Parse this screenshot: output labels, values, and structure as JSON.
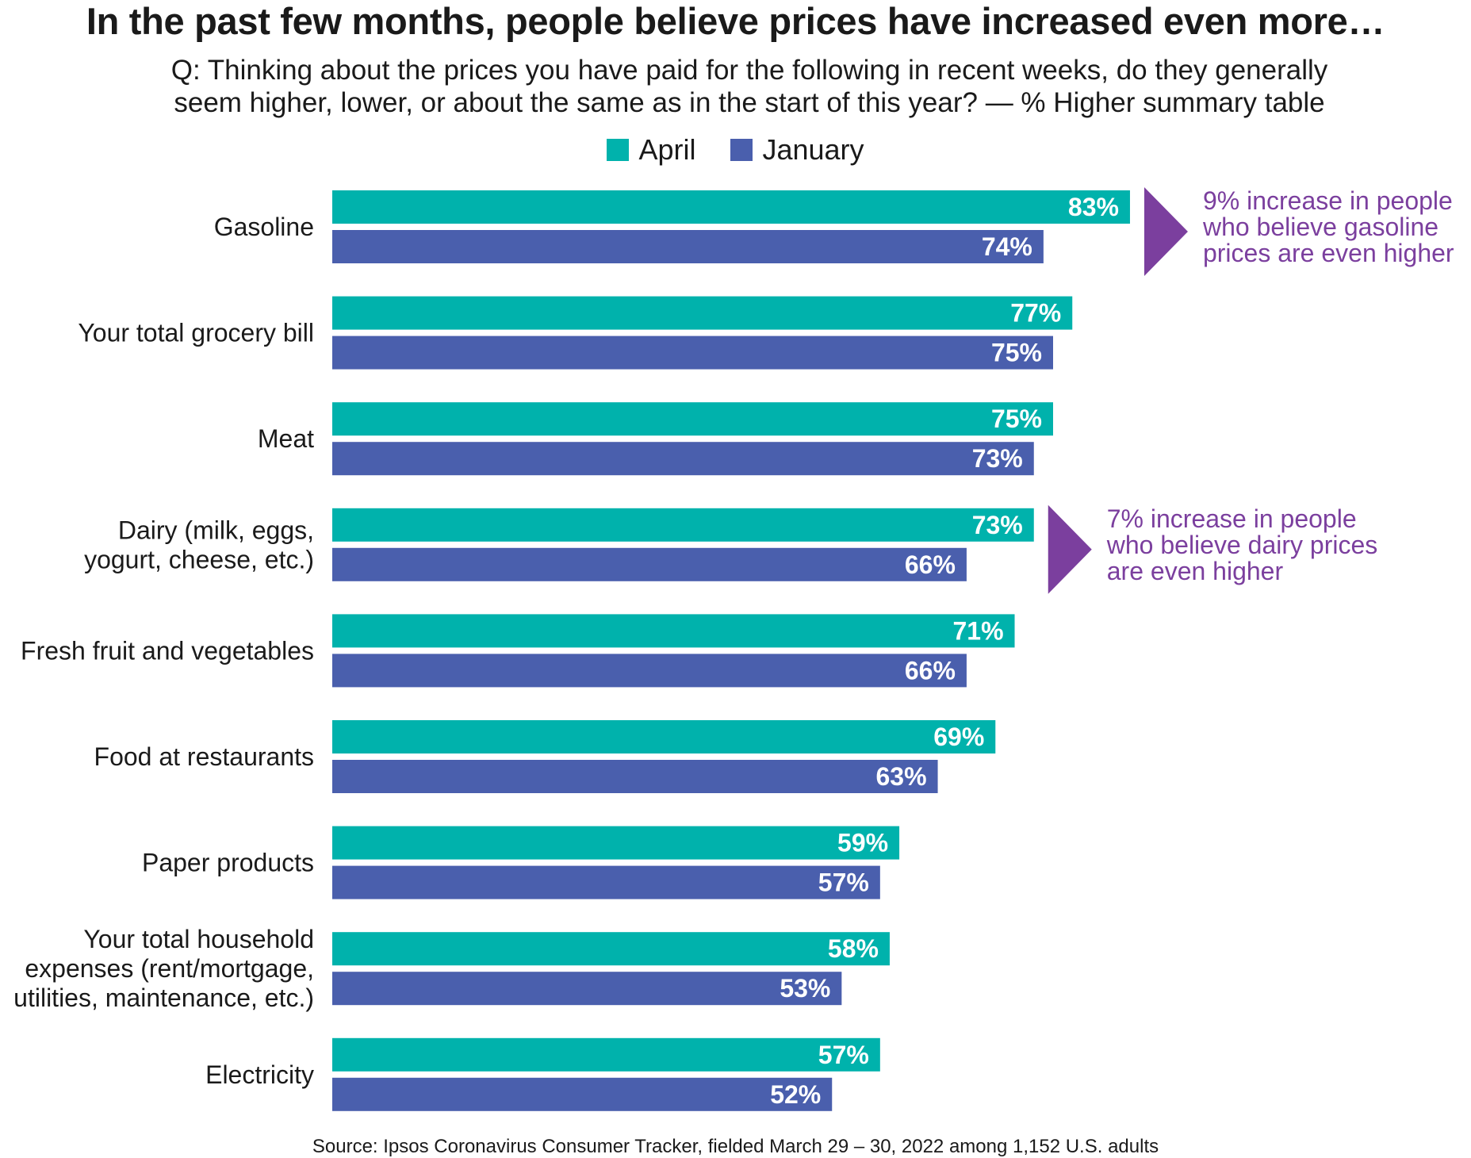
{
  "title": "In the past few months, people believe prices have increased even more…",
  "subtitle_line1": "Q: Thinking about the prices you have paid for the following in recent weeks, do they generally",
  "subtitle_line2": "seem higher, lower, or about the same as in the start of this year? — % Higher summary table",
  "source": "Source: Ipsos Coronavirus Consumer Tracker, fielded March 29 – 30, 2022 among 1,152 U.S. adults",
  "colors": {
    "april": "#00b2ac",
    "january": "#4a5fad",
    "annotation": "#7b3f9e"
  },
  "chart_data": {
    "type": "bar",
    "orientation": "horizontal",
    "title": "In the past few months, people believe prices have increased even more…",
    "categories": [
      [
        "Gasoline"
      ],
      [
        "Your total grocery bill"
      ],
      [
        "Meat"
      ],
      [
        "Dairy (milk, eggs,",
        "yogurt, cheese, etc.)"
      ],
      [
        "Fresh fruit and vegetables"
      ],
      [
        "Food at restaurants"
      ],
      [
        "Paper products"
      ],
      [
        "Your total household",
        "expenses (rent/mortgage,",
        "utilities, maintenance, etc.)"
      ],
      [
        "Electricity"
      ]
    ],
    "series": [
      {
        "name": "April",
        "values": [
          83,
          77,
          75,
          73,
          71,
          69,
          59,
          58,
          57
        ]
      },
      {
        "name": "January",
        "values": [
          74,
          75,
          73,
          66,
          66,
          63,
          57,
          53,
          52
        ]
      }
    ],
    "value_suffix": "%",
    "xlim": [
      0,
      100
    ],
    "legend": "top-center",
    "grid": false,
    "annotations": [
      {
        "category_index": 0,
        "lines": [
          "9% increase in people",
          "who believe gasoline",
          "prices are even higher"
        ]
      },
      {
        "category_index": 3,
        "lines": [
          "7% increase in people",
          "who believe dairy prices",
          "are even higher"
        ]
      }
    ]
  }
}
